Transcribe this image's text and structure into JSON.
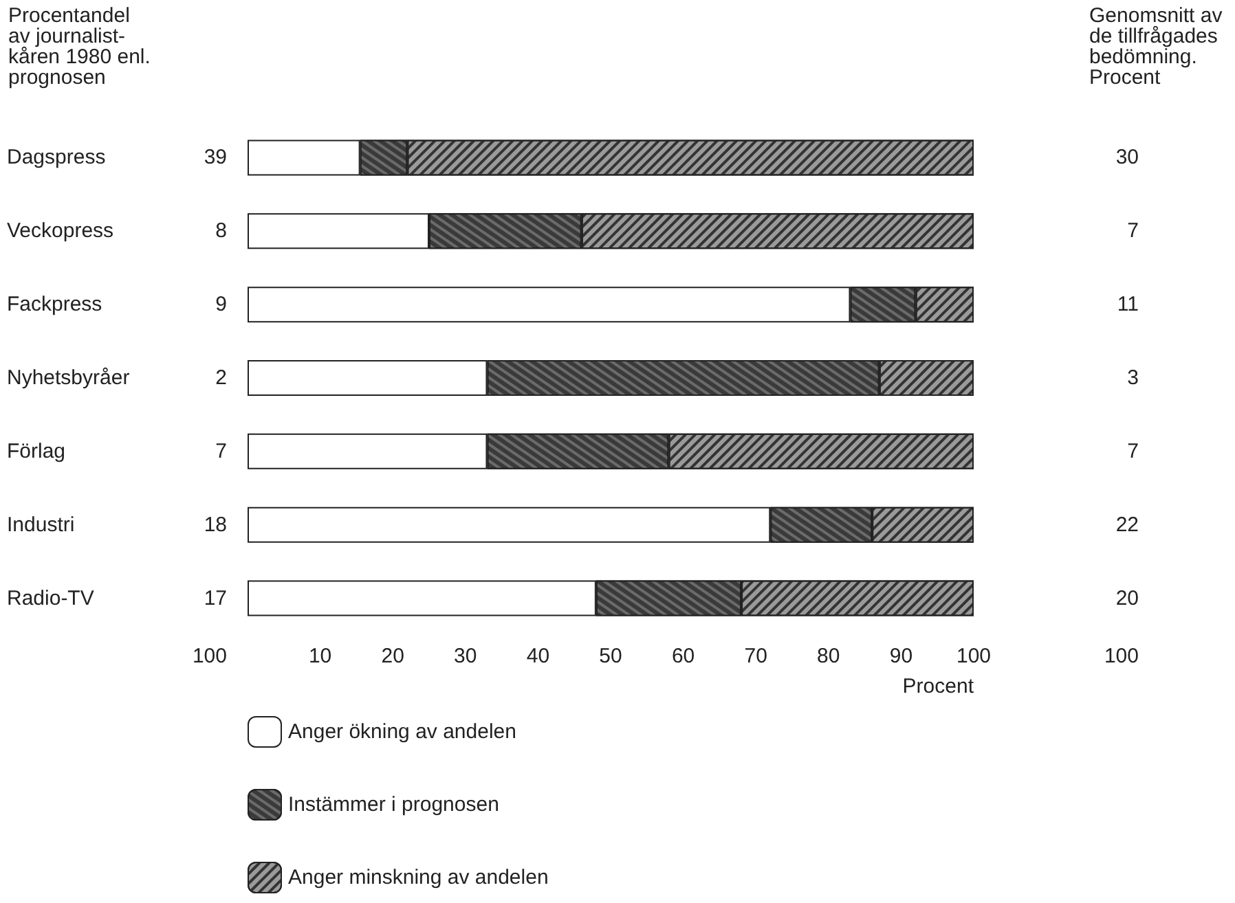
{
  "chart_data": {
    "type": "bar",
    "orientation": "horizontal",
    "stacked": true,
    "categories": [
      "Dagspress",
      "Veckopress",
      "Fackpress",
      "Nyhetsbyråer",
      "Förlag",
      "Industri",
      "Radio-TV"
    ],
    "series": [
      {
        "name": "Anger ökning av andelen",
        "color": "#ffffff",
        "values": [
          15.5,
          25,
          83,
          33,
          33,
          72,
          48
        ]
      },
      {
        "name": "Instämmer i prognosen",
        "color": "#3a3a3a",
        "values": [
          6.5,
          21,
          9,
          54,
          25,
          14,
          20
        ]
      },
      {
        "name": "Anger minskning av andelen",
        "color": "#9a9a9a",
        "values": [
          78,
          54,
          8,
          13,
          42,
          14,
          32
        ]
      }
    ],
    "xlim": [
      0,
      100
    ],
    "xticks": [
      10,
      20,
      30,
      40,
      50,
      60,
      70,
      80,
      90,
      100
    ],
    "xlabel": "Procent",
    "ylabel": "Procentandel\nav journalist-\nkåren 1980 enl.\nprognosen",
    "annotations": [
      "39",
      "8",
      "9",
      "2",
      "7",
      "18",
      "17",
      "100",
      "Genomsnitt av\nde tillfrågades\nbedömning.\nProcent",
      "30",
      "7",
      "11",
      "3",
      "7",
      "22",
      "20",
      "100"
    ],
    "legend": "bottom left",
    "grid": false
  }
}
